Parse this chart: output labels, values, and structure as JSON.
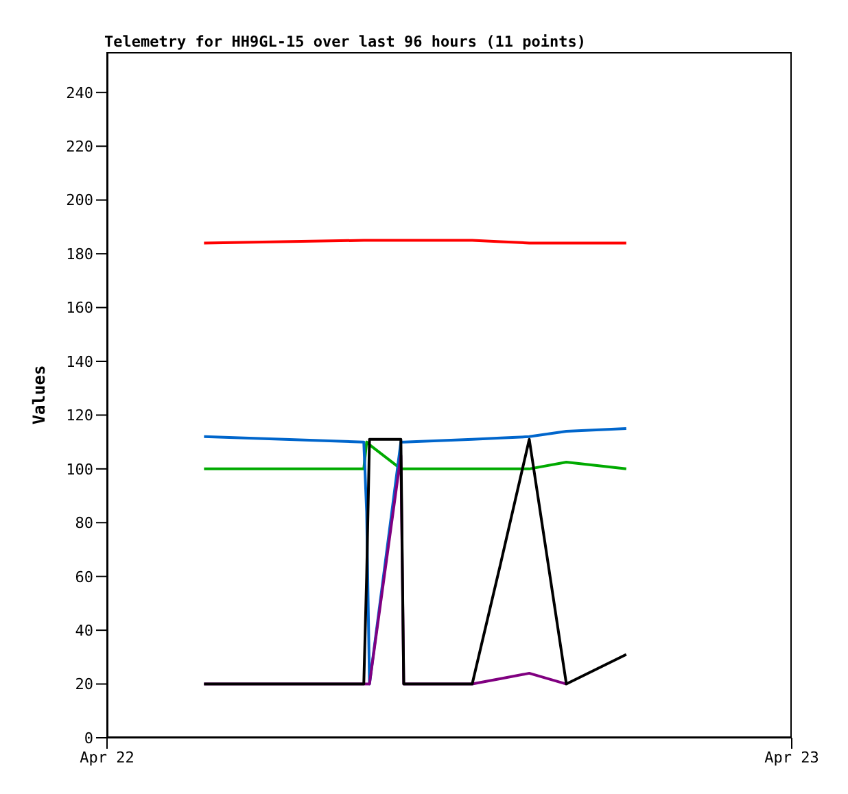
{
  "chart_data": {
    "type": "line",
    "title": "Telemetry for HH9GL-15 over last 96 hours (11 points)",
    "ylabel": "Values",
    "x": [
      "--04-22T03:24",
      "--04-22T09:00",
      "--04-22T09:06",
      "--04-22T09:12",
      "--04-22T10:18",
      "--04-22T10:24",
      "--04-22T12:48",
      "--04-22T13:48",
      "--04-22T14:48",
      "--04-22T16:06",
      "--04-22T18:12"
    ],
    "xlim": [
      "--04-22",
      "--04-23"
    ],
    "xticks": [
      {
        "value": "--04-22",
        "label": "Apr 22"
      },
      {
        "value": "--04-23",
        "label": "Apr 23"
      }
    ],
    "ylim": [
      0,
      255
    ],
    "yticks": [
      0,
      20,
      40,
      60,
      80,
      100,
      120,
      140,
      160,
      180,
      200,
      220,
      240
    ],
    "series": [
      {
        "color": "#ff0000",
        "values": [
          184,
          185,
          185,
          185,
          185,
          185,
          185,
          184.5,
          184,
          184,
          184
        ]
      },
      {
        "color": "#00aa00",
        "values": [
          100,
          100,
          110,
          109,
          100,
          100,
          100,
          100,
          100,
          102.5,
          100
        ]
      },
      {
        "color": "#0066cc",
        "values": [
          112,
          110,
          84,
          20,
          110,
          110,
          111,
          111.5,
          112,
          114,
          115
        ]
      },
      {
        "color": "#800080",
        "values": [
          20,
          20,
          20,
          20,
          105,
          20,
          20,
          22,
          24,
          20,
          null
        ]
      },
      {
        "color": "#000000",
        "values": [
          20,
          20,
          60,
          111,
          111,
          20,
          20,
          65,
          111,
          20,
          31
        ]
      }
    ]
  }
}
